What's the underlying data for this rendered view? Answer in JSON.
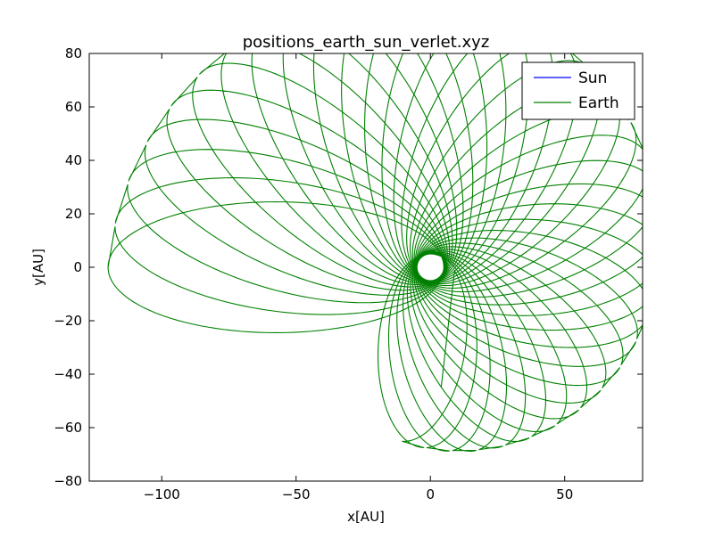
{
  "chart_data": {
    "type": "line",
    "title": "positions_earth_sun_verlet.xyz",
    "xlabel": "x[AU]",
    "ylabel": "y[AU]",
    "xlim": [
      -127,
      79
    ],
    "ylim": [
      -80,
      80
    ],
    "xticks": [
      -100,
      -50,
      0,
      50
    ],
    "yticks": [
      -80,
      -60,
      -40,
      -20,
      0,
      20,
      40,
      60,
      80
    ],
    "xtick_labels": [
      "−100",
      "−50",
      "0",
      "50"
    ],
    "ytick_labels": [
      "−80",
      "−60",
      "−40",
      "−20",
      "0",
      "20",
      "40",
      "60",
      "80"
    ],
    "grid": false,
    "legend_position": "top-right",
    "series": [
      {
        "name": "Sun",
        "color": "#0000ff",
        "x": [
          0,
          0
        ],
        "y": [
          0,
          0
        ]
      },
      {
        "name": "Earth",
        "color": "#008000",
        "kind": "precessing-ellipse",
        "orbits": 36,
        "perihelion_distance": 5,
        "apoapsis_start": 120,
        "apoapsis_end": 66,
        "eccentricity_start": 0.92,
        "eccentricity_end": 0.86,
        "orientation_start_deg": 180,
        "orientation_step_deg": -8.0,
        "final_point": [
          4,
          -45
        ]
      }
    ]
  }
}
